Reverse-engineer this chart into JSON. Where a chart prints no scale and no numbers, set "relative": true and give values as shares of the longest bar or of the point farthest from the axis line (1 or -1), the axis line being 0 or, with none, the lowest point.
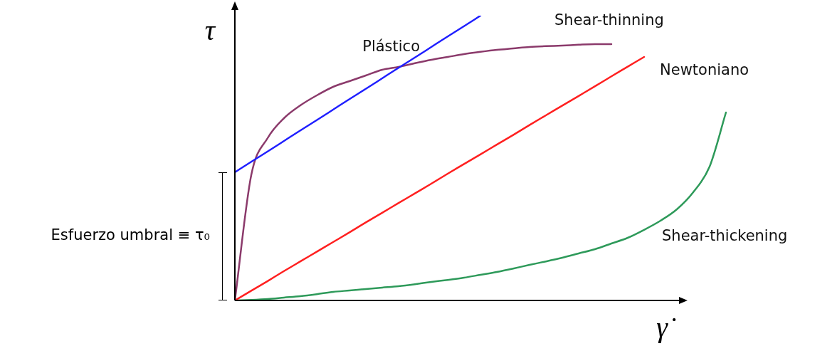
{
  "chart_data": {
    "type": "line",
    "relative": true,
    "xlabel": "γ̇",
    "ylabel": "τ",
    "legend": false,
    "marker": "none",
    "line_style": "solid",
    "categories": [
      null,
      null,
      null,
      null,
      null,
      null,
      null,
      null,
      null,
      null,
      null,
      null,
      null,
      null,
      null,
      null,
      null,
      null,
      null,
      null,
      null,
      null,
      null,
      null,
      null,
      null,
      null,
      null,
      null,
      null,
      null
    ],
    "series": [
      {
        "name": "Plástico",
        "color": "#1f1fff",
        "values": [
          0.45,
          0.487,
          0.523,
          0.56,
          0.597,
          0.633,
          0.67,
          0.707,
          0.743,
          0.78,
          0.817,
          0.853,
          0.89,
          0.927,
          0.963,
          1.0,
          null,
          null,
          null,
          null,
          null,
          null,
          null,
          null,
          null,
          null,
          null,
          null,
          null,
          null,
          null
        ]
      },
      {
        "name": "Shear-thinning",
        "color": "#8b3a6b",
        "values": [
          0,
          0.44,
          0.57,
          0.64,
          0.685,
          0.72,
          0.75,
          0.77,
          0.79,
          0.81,
          0.82,
          0.833,
          0.845,
          0.855,
          0.865,
          0.873,
          0.88,
          0.885,
          0.89,
          0.893,
          0.895,
          0.898,
          0.9,
          0.9,
          null,
          null,
          null,
          null,
          null,
          null,
          null
        ]
      },
      {
        "name": "Newtoniano",
        "color": "#ff2020",
        "values": [
          0,
          0.034,
          0.068,
          0.103,
          0.137,
          0.171,
          0.205,
          0.239,
          0.274,
          0.308,
          0.342,
          0.376,
          0.41,
          0.445,
          0.479,
          0.513,
          0.547,
          0.581,
          0.616,
          0.65,
          0.684,
          0.718,
          0.752,
          0.787,
          0.821,
          0.855,
          null,
          null,
          null,
          null,
          null
        ]
      },
      {
        "name": "Shear-thickening",
        "color": "#2e9a5a",
        "values": [
          0,
          0.002,
          0.005,
          0.01,
          0.015,
          0.022,
          0.03,
          0.035,
          0.04,
          0.045,
          0.05,
          0.057,
          0.065,
          0.072,
          0.08,
          0.09,
          0.1,
          0.112,
          0.125,
          0.137,
          0.15,
          0.165,
          0.18,
          0.2,
          0.22,
          0.248,
          0.28,
          0.32,
          0.38,
          0.47,
          0.66
        ]
      }
    ],
    "annotations": [
      "Esfuerzo umbral ≡ τ₀"
    ]
  }
}
